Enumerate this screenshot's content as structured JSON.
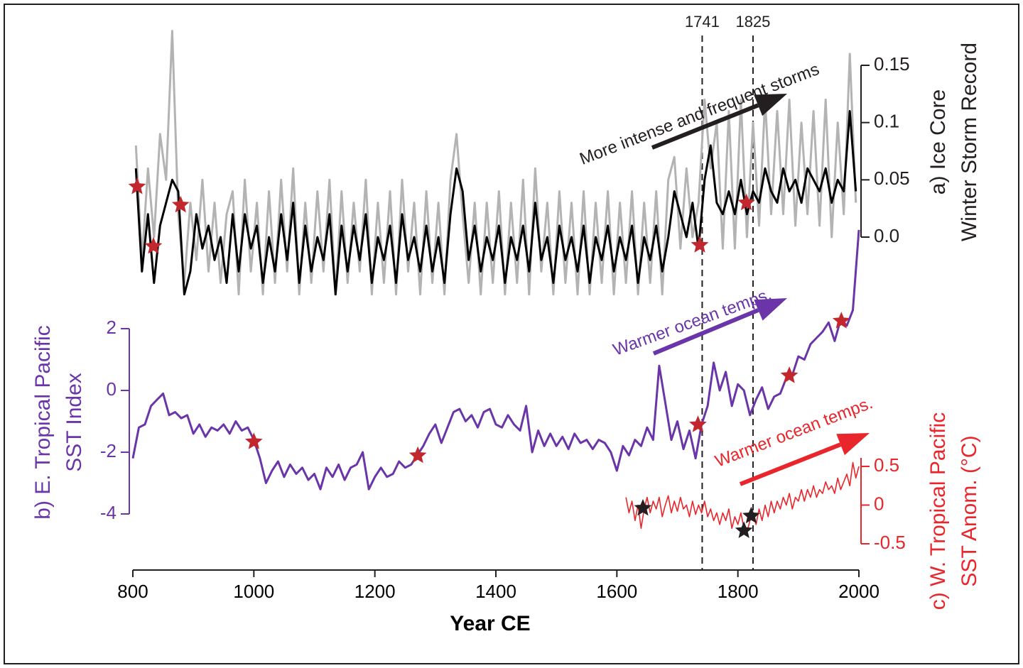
{
  "chart_data": {
    "type": "line",
    "xlabel": "Year CE",
    "xlim": [
      800,
      2000
    ],
    "xticks": [
      800,
      1000,
      1200,
      1400,
      1600,
      1800,
      2000
    ],
    "ylabel": [
      "b) E. Tropical Pacific",
      "SST Index"
    ],
    "ylim": [
      -4,
      2
    ],
    "yticks": [
      2,
      0,
      -2,
      -4
    ],
    "y2label": [
      "a) Ice Core",
      "Winter Storm Record"
    ],
    "y2lim": [
      0,
      0.15
    ],
    "y2ticks": [
      0.15,
      0.1,
      0.05,
      {
        "value": 0,
        "label": "0.0"
      }
    ],
    "y3label": [
      "c) W. Tropical Pacific",
      "SST Anom. (°C)"
    ],
    "y3lim": [
      -0.5,
      0.5
    ],
    "y3ticks": [
      0.5,
      0,
      -0.5
    ],
    "vlines": [
      1741,
      1825
    ],
    "annotations": [
      {
        "text": "More intense and frequent storms",
        "color": "#231f20"
      },
      {
        "text": "Warmer ocean temps.",
        "color": "#6a35a8"
      },
      {
        "text": "Warmer ocean temps.",
        "color": "#e8262b"
      }
    ],
    "series": [
      {
        "color": "#b3b3b3",
        "axis": "y2",
        "x": [
          805,
          815,
          825,
          835,
          845,
          855,
          865,
          875,
          885,
          895,
          905,
          915,
          925,
          935,
          945,
          955,
          965,
          975,
          985,
          995,
          1005,
          1015,
          1025,
          1035,
          1045,
          1055,
          1065,
          1075,
          1085,
          1095,
          1105,
          1115,
          1125,
          1135,
          1145,
          1155,
          1165,
          1175,
          1185,
          1195,
          1205,
          1215,
          1225,
          1235,
          1245,
          1255,
          1265,
          1275,
          1285,
          1295,
          1305,
          1315,
          1325,
          1335,
          1345,
          1355,
          1365,
          1375,
          1385,
          1395,
          1405,
          1415,
          1425,
          1435,
          1445,
          1455,
          1465,
          1475,
          1485,
          1495,
          1505,
          1515,
          1525,
          1535,
          1545,
          1555,
          1565,
          1575,
          1585,
          1595,
          1605,
          1615,
          1625,
          1635,
          1645,
          1655,
          1665,
          1675,
          1685,
          1695,
          1705,
          1715,
          1725,
          1735,
          1745,
          1755,
          1765,
          1775,
          1785,
          1795,
          1805,
          1815,
          1825,
          1835,
          1845,
          1855,
          1865,
          1875,
          1885,
          1895,
          1905,
          1915,
          1925,
          1935,
          1945,
          1955,
          1965,
          1975,
          1985,
          1995
        ],
        "values": [
          0.08,
          -0.02,
          0.06,
          0.0,
          0.09,
          0.05,
          0.18,
          0.02,
          -0.04,
          0.03,
          -0.02,
          0.05,
          -0.03,
          0.03,
          -0.04,
          0.02,
          0.04,
          -0.05,
          0.05,
          -0.03,
          0.03,
          -0.05,
          0.04,
          -0.04,
          0.05,
          -0.03,
          0.06,
          -0.05,
          0.03,
          -0.04,
          0.04,
          -0.03,
          0.05,
          -0.05,
          0.04,
          -0.04,
          0.03,
          -0.03,
          0.05,
          -0.05,
          0.03,
          -0.04,
          0.04,
          -0.05,
          0.05,
          -0.03,
          0.03,
          -0.05,
          0.04,
          -0.04,
          0.03,
          -0.05,
          0.05,
          0.09,
          0.02,
          -0.04,
          0.03,
          -0.05,
          0.03,
          -0.04,
          0.04,
          -0.05,
          0.03,
          -0.04,
          0.05,
          -0.05,
          0.06,
          -0.03,
          0.03,
          -0.05,
          0.04,
          -0.04,
          0.03,
          -0.05,
          0.04,
          -0.05,
          0.03,
          -0.04,
          0.04,
          -0.05,
          0.03,
          -0.04,
          0.04,
          -0.05,
          0.03,
          -0.04,
          0.04,
          -0.05,
          0.05,
          0.07,
          -0.01,
          0.06,
          0.0,
          0.03,
          0.12,
          0.06,
          0.1,
          -0.01,
          0.11,
          -0.01,
          0.12,
          0.0,
          0.1,
          0.01,
          0.12,
          0.02,
          0.11,
          0.02,
          0.12,
          0.01,
          0.1,
          0.02,
          0.11,
          0.01,
          0.12,
          0.0,
          0.1,
          0.02,
          0.16,
          0.03
        ]
      },
      {
        "color": "#000000",
        "axis": "y2",
        "x": [
          805,
          815,
          825,
          835,
          845,
          855,
          865,
          875,
          885,
          895,
          905,
          915,
          925,
          935,
          945,
          955,
          965,
          975,
          985,
          995,
          1005,
          1015,
          1025,
          1035,
          1045,
          1055,
          1065,
          1075,
          1085,
          1095,
          1105,
          1115,
          1125,
          1135,
          1145,
          1155,
          1165,
          1175,
          1185,
          1195,
          1205,
          1215,
          1225,
          1235,
          1245,
          1255,
          1265,
          1275,
          1285,
          1295,
          1305,
          1315,
          1325,
          1335,
          1345,
          1355,
          1365,
          1375,
          1385,
          1395,
          1405,
          1415,
          1425,
          1435,
          1445,
          1455,
          1465,
          1475,
          1485,
          1495,
          1505,
          1515,
          1525,
          1535,
          1545,
          1555,
          1565,
          1575,
          1585,
          1595,
          1605,
          1615,
          1625,
          1635,
          1645,
          1655,
          1665,
          1675,
          1685,
          1695,
          1705,
          1715,
          1725,
          1735,
          1745,
          1755,
          1765,
          1775,
          1785,
          1795,
          1805,
          1815,
          1825,
          1835,
          1845,
          1855,
          1865,
          1875,
          1885,
          1895,
          1905,
          1915,
          1925,
          1935,
          1945,
          1955,
          1965,
          1975,
          1985,
          1995
        ],
        "values": [
          0.06,
          -0.03,
          0.02,
          -0.04,
          0.01,
          0.03,
          0.05,
          0.04,
          -0.05,
          -0.03,
          0.02,
          -0.01,
          0.01,
          -0.02,
          0.0,
          -0.04,
          0.02,
          -0.03,
          0.02,
          -0.01,
          0.01,
          -0.04,
          0.0,
          -0.03,
          0.02,
          -0.02,
          0.03,
          -0.04,
          0.01,
          -0.03,
          0.0,
          -0.02,
          0.02,
          -0.05,
          0.01,
          -0.03,
          0.01,
          -0.02,
          0.02,
          -0.04,
          0.0,
          -0.02,
          0.01,
          -0.04,
          0.02,
          -0.02,
          0.0,
          -0.03,
          0.01,
          -0.03,
          0.0,
          -0.04,
          0.02,
          0.06,
          0.04,
          -0.02,
          0.01,
          -0.03,
          0.0,
          -0.02,
          0.01,
          -0.04,
          0.0,
          -0.02,
          0.01,
          -0.03,
          0.03,
          -0.02,
          0.0,
          -0.04,
          0.01,
          -0.02,
          0.0,
          -0.03,
          0.01,
          -0.04,
          0.0,
          -0.02,
          0.01,
          -0.03,
          0.0,
          -0.02,
          0.01,
          -0.04,
          0.0,
          -0.02,
          0.01,
          -0.03,
          0.0,
          0.04,
          0.02,
          0.0,
          0.03,
          -0.01,
          0.05,
          0.08,
          0.03,
          0.02,
          0.04,
          0.02,
          0.05,
          0.02,
          0.04,
          0.03,
          0.06,
          0.04,
          0.03,
          0.06,
          0.04,
          0.05,
          0.03,
          0.06,
          0.05,
          0.04,
          0.06,
          0.03,
          0.05,
          0.04,
          0.11,
          0.04
        ]
      },
      {
        "color": "#6a35a8",
        "axis": "y",
        "x": [
          800,
          810,
          820,
          830,
          840,
          850,
          860,
          870,
          880,
          890,
          900,
          910,
          920,
          930,
          940,
          950,
          960,
          970,
          980,
          990,
          1000,
          1010,
          1020,
          1030,
          1040,
          1050,
          1060,
          1070,
          1080,
          1090,
          1100,
          1110,
          1120,
          1130,
          1140,
          1150,
          1160,
          1170,
          1180,
          1190,
          1200,
          1210,
          1220,
          1230,
          1240,
          1250,
          1260,
          1270,
          1280,
          1290,
          1300,
          1310,
          1320,
          1330,
          1340,
          1350,
          1360,
          1370,
          1380,
          1390,
          1400,
          1410,
          1420,
          1430,
          1440,
          1450,
          1460,
          1470,
          1480,
          1490,
          1500,
          1510,
          1520,
          1530,
          1540,
          1550,
          1560,
          1570,
          1580,
          1590,
          1600,
          1610,
          1620,
          1630,
          1640,
          1650,
          1660,
          1670,
          1680,
          1690,
          1700,
          1710,
          1720,
          1730,
          1740,
          1750,
          1760,
          1770,
          1780,
          1790,
          1800,
          1810,
          1820,
          1830,
          1840,
          1850,
          1860,
          1870,
          1880,
          1890,
          1900,
          1910,
          1920,
          1930,
          1940,
          1950,
          1960,
          1970,
          1980,
          1990,
          2000
        ],
        "values": [
          -2.2,
          -1.2,
          -1.1,
          -0.5,
          -0.3,
          -0.1,
          -0.8,
          -0.7,
          -0.9,
          -0.8,
          -1.4,
          -1.1,
          -1.5,
          -1.2,
          -1.3,
          -1.1,
          -1.4,
          -1.0,
          -1.3,
          -1.2,
          -1.6,
          -2.2,
          -3.0,
          -2.6,
          -2.3,
          -2.8,
          -2.4,
          -2.7,
          -2.5,
          -2.9,
          -2.7,
          -3.2,
          -2.5,
          -2.8,
          -2.4,
          -2.9,
          -2.5,
          -2.4,
          -2.0,
          -3.2,
          -2.8,
          -2.5,
          -2.8,
          -2.7,
          -2.3,
          -2.5,
          -2.4,
          -2.1,
          -1.8,
          -1.4,
          -1.1,
          -1.7,
          -1.2,
          -0.7,
          -0.6,
          -1.0,
          -0.8,
          -1.2,
          -0.7,
          -0.6,
          -1.1,
          -1.2,
          -0.8,
          -1.1,
          -1.3,
          -0.5,
          -2.0,
          -1.3,
          -1.8,
          -1.4,
          -1.8,
          -1.5,
          -1.9,
          -1.4,
          -1.7,
          -1.6,
          -1.9,
          -1.6,
          -1.7,
          -2.0,
          -2.6,
          -1.8,
          -2.1,
          -1.6,
          -1.8,
          -1.2,
          -1.6,
          0.8,
          -0.4,
          -1.6,
          -1.0,
          -1.9,
          -1.3,
          -2.2,
          -1.1,
          -0.5,
          0.9,
          0.0,
          0.6,
          -0.5,
          0.2,
          0.0,
          -0.8,
          -0.3,
          0.1,
          -0.6,
          -0.2,
          -0.1,
          0.4,
          0.5,
          1.1,
          1.0,
          1.5,
          1.7,
          1.9,
          2.2,
          1.6,
          2.3,
          2.1,
          2.6,
          5.2
        ]
      },
      {
        "color": "#e8262b",
        "axis": "y3",
        "x": [
          1615,
          1620,
          1625,
          1630,
          1635,
          1640,
          1645,
          1650,
          1655,
          1660,
          1665,
          1670,
          1675,
          1680,
          1685,
          1690,
          1695,
          1700,
          1705,
          1710,
          1715,
          1720,
          1725,
          1730,
          1735,
          1740,
          1745,
          1750,
          1755,
          1760,
          1765,
          1770,
          1775,
          1780,
          1785,
          1790,
          1795,
          1800,
          1805,
          1810,
          1815,
          1820,
          1825,
          1830,
          1835,
          1840,
          1845,
          1850,
          1855,
          1860,
          1865,
          1870,
          1875,
          1880,
          1885,
          1890,
          1895,
          1900,
          1905,
          1910,
          1915,
          1920,
          1925,
          1930,
          1935,
          1940,
          1945,
          1950,
          1955,
          1960,
          1965,
          1970,
          1975,
          1980,
          1985,
          1990,
          1995,
          2000
        ],
        "values": [
          0.1,
          -0.1,
          0.05,
          -0.2,
          0.0,
          -0.3,
          -0.05,
          0.1,
          -0.1,
          0.05,
          -0.05,
          0.1,
          -0.15,
          0.0,
          0.12,
          -0.1,
          0.05,
          -0.08,
          0.1,
          -0.05,
          0.0,
          -0.15,
          0.05,
          -0.12,
          0.0,
          -0.1,
          0.05,
          -0.15,
          -0.05,
          -0.2,
          -0.1,
          -0.25,
          -0.1,
          -0.2,
          -0.05,
          -0.3,
          -0.15,
          -0.25,
          -0.1,
          -0.3,
          -0.35,
          -0.2,
          -0.1,
          -0.25,
          -0.05,
          -0.2,
          0.0,
          -0.15,
          0.05,
          -0.1,
          0.05,
          -0.05,
          0.1,
          0.0,
          0.15,
          -0.05,
          0.1,
          0.05,
          0.2,
          0.05,
          0.2,
          0.1,
          0.25,
          0.1,
          0.2,
          0.15,
          0.3,
          0.2,
          0.25,
          0.15,
          0.35,
          0.2,
          0.3,
          0.4,
          0.25,
          0.55,
          0.35,
          0.5
        ]
      }
    ],
    "markers": [
      {
        "color": "#c1272d",
        "axis": "y2",
        "x": [
          807,
          834,
          879,
          1737,
          1814
        ],
        "values": [
          0.044,
          -0.008,
          0.028,
          -0.007,
          0.03
        ]
      },
      {
        "color": "#c1272d",
        "axis": "y",
        "x": [
          1000,
          1271,
          1734,
          1885,
          1971
        ],
        "values": [
          -1.66,
          -2.11,
          -1.11,
          0.48,
          2.25
        ]
      },
      {
        "color": "#231f20",
        "axis": "y3",
        "x": [
          1643,
          1810,
          1822
        ],
        "values": [
          -0.04,
          -0.33,
          -0.14
        ]
      }
    ]
  }
}
